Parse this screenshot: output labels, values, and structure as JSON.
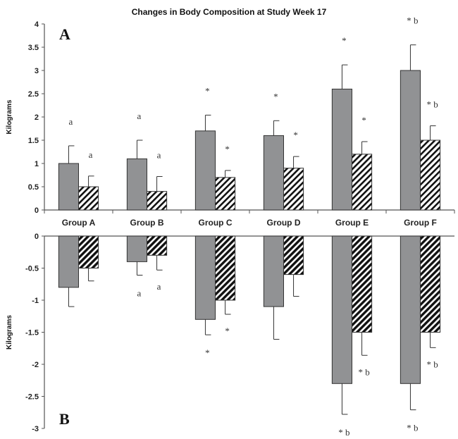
{
  "chart_data": [
    {
      "type": "bar",
      "title": "Changes in Body Composition at Study Week 17",
      "panel_label": "A",
      "ylabel": "Kilograms",
      "ylim": [
        0,
        4
      ],
      "yticks": [
        "0",
        "0.5",
        "1",
        "1.5",
        "2",
        "2.5",
        "3",
        "3.5",
        "4"
      ],
      "categories": [
        "Group A",
        "Group B",
        "Group C",
        "Group D",
        "Group E",
        "Group F"
      ],
      "series": [
        {
          "fill": "gray",
          "values": [
            1.0,
            1.1,
            1.7,
            1.6,
            2.6,
            3.0
          ],
          "error_upper": [
            1.38,
            1.5,
            2.04,
            1.92,
            3.12,
            3.55
          ],
          "annotations": [
            "a",
            "a",
            "*",
            "*",
            "*",
            "* b"
          ]
        },
        {
          "fill": "hatched",
          "values": [
            0.5,
            0.4,
            0.7,
            0.9,
            1.2,
            1.5
          ],
          "error_upper": [
            0.73,
            0.72,
            0.85,
            1.15,
            1.47,
            1.81
          ],
          "annotations": [
            "a",
            "a",
            "*",
            "*",
            "*",
            "* b"
          ]
        }
      ],
      "colors": {
        "gray": "#919294",
        "hatch": "#111111"
      },
      "grid": false
    },
    {
      "type": "bar",
      "panel_label": "B",
      "ylabel": "Kilograms",
      "ylim": [
        -3,
        0
      ],
      "yticks": [
        "-3",
        "-2.5",
        "-2",
        "-1.5",
        "-1",
        "-0.5",
        "0"
      ],
      "categories": [
        "Group A",
        "Group B",
        "Group C",
        "Group D",
        "Group E",
        "Group F"
      ],
      "series": [
        {
          "fill": "gray",
          "values": [
            -0.8,
            -0.4,
            -1.3,
            -1.1,
            -2.3,
            -2.3
          ],
          "error_lower": [
            -1.1,
            -0.61,
            -1.54,
            -1.61,
            -2.78,
            -2.71
          ],
          "annotations": [
            "",
            "a",
            "*",
            "",
            "* b",
            "* b"
          ]
        },
        {
          "fill": "hatched",
          "values": [
            -0.5,
            -0.3,
            -1.0,
            -0.6,
            -1.5,
            -1.5
          ],
          "error_lower": [
            -0.7,
            -0.53,
            -1.22,
            -0.94,
            -1.86,
            -1.74
          ],
          "annotations": [
            "",
            "a",
            "*",
            "",
            "* b",
            "* b"
          ]
        }
      ],
      "colors": {
        "gray": "#919294",
        "hatch": "#111111"
      },
      "grid": false
    }
  ]
}
